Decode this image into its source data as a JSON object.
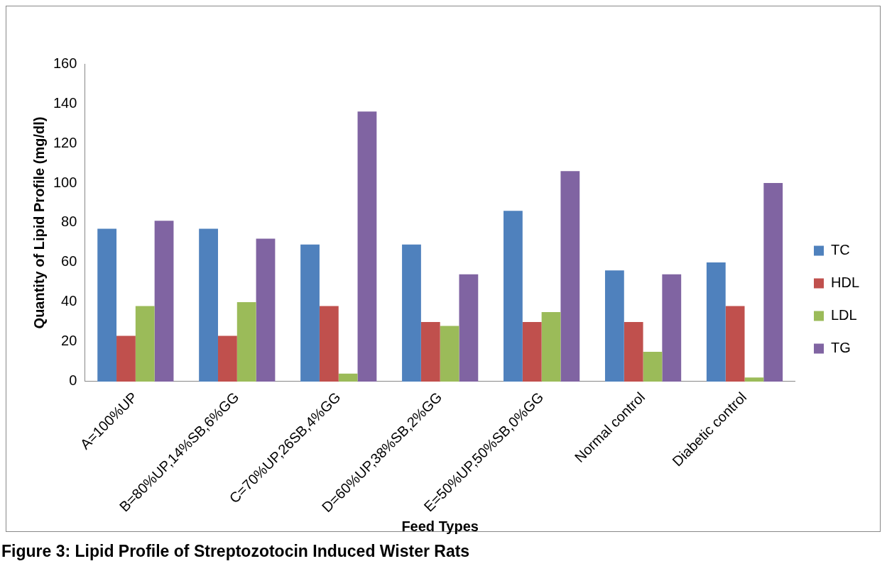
{
  "chart_data": {
    "type": "bar",
    "xlabel": "Feed Types",
    "ylabel": "Quantity of Lipid Profile (mg/dl)",
    "categories": [
      "A=100%UP",
      "B=80%UP,14%SB,6%GG",
      "C=70%UP,26SB,4%GG",
      "D=60%UP,38%SB,2%GG",
      "E=50%UP,50%SB,0%GG",
      "Normal control",
      "Diabetic control"
    ],
    "series": [
      {
        "name": "TC",
        "color": "#4f81bd",
        "values": [
          77,
          77,
          69,
          69,
          86,
          56,
          60
        ]
      },
      {
        "name": "HDL",
        "color": "#c0504d",
        "values": [
          23,
          23,
          38,
          30,
          30,
          30,
          38
        ]
      },
      {
        "name": "LDL",
        "color": "#9bbb59",
        "values": [
          38,
          40,
          4,
          28,
          35,
          15,
          2
        ]
      },
      {
        "name": "TG",
        "color": "#8064a2",
        "values": [
          81,
          72,
          136,
          54,
          106,
          54,
          100
        ]
      }
    ],
    "ylim": [
      0,
      160
    ],
    "yticks": [
      0,
      20,
      40,
      60,
      80,
      100,
      120,
      140,
      160
    ],
    "grid": false,
    "legend": "right",
    "annotations": [
      "Figure 3: Lipid Profile of Streptozotocin Induced Wister Rats"
    ]
  }
}
